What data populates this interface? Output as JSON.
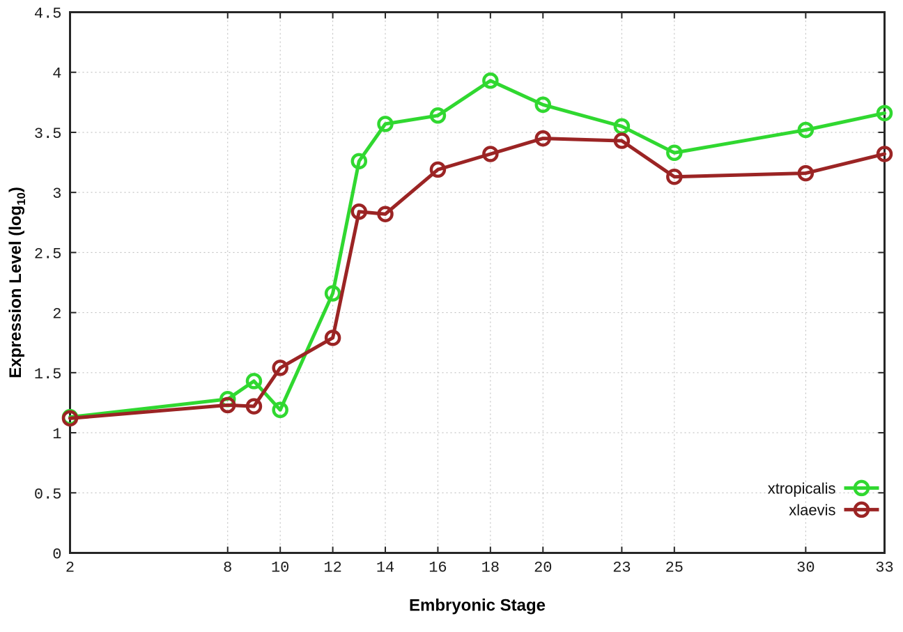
{
  "chart_data": {
    "type": "line",
    "title": "",
    "xlabel": "Embryonic Stage",
    "ylabel": "Expression Level (log10)",
    "ylabel_parts": {
      "main": "Expression Level (log",
      "sub": "10",
      "close": ")"
    },
    "xlim": [
      2,
      33
    ],
    "ylim": [
      0,
      4.5
    ],
    "x_ticks": [
      2,
      8,
      10,
      12,
      14,
      16,
      18,
      20,
      23,
      25,
      30,
      33
    ],
    "x_tick_labels": [
      "2",
      "8",
      "10",
      "12",
      "14",
      "16",
      "18",
      "20",
      "23",
      "25",
      "30",
      "33"
    ],
    "y_ticks": [
      0,
      0.5,
      1,
      1.5,
      2,
      2.5,
      3,
      3.5,
      4,
      4.5
    ],
    "y_tick_labels": [
      "0",
      "0.5",
      "1",
      "1.5",
      "2",
      "2.5",
      "3",
      "3.5",
      "4",
      "4.5"
    ],
    "grid": true,
    "legend_position": "bottom-right",
    "series": [
      {
        "name": "xtropicalis",
        "color": "#30d830",
        "marker": "open-circle",
        "x": [
          2,
          8,
          9,
          10,
          12,
          13,
          14,
          16,
          18,
          20,
          23,
          25,
          30,
          33
        ],
        "values": [
          1.13,
          1.28,
          1.43,
          1.19,
          2.16,
          3.26,
          3.57,
          3.64,
          3.93,
          3.73,
          3.55,
          3.33,
          3.52,
          3.66
        ]
      },
      {
        "name": "xlaevis",
        "color": "#9b2424",
        "marker": "open-circle",
        "x": [
          2,
          8,
          9,
          10,
          12,
          13,
          14,
          16,
          18,
          20,
          23,
          25,
          30,
          33
        ],
        "values": [
          1.12,
          1.23,
          1.22,
          1.54,
          1.79,
          2.84,
          2.82,
          3.19,
          3.32,
          3.45,
          3.43,
          3.13,
          3.16,
          3.32
        ]
      }
    ]
  },
  "style_colors": {
    "background": "#ffffff",
    "plot_border": "#262626",
    "grid": "#b8b8b8",
    "tick": "#262626",
    "text": "#1c1c1c"
  }
}
